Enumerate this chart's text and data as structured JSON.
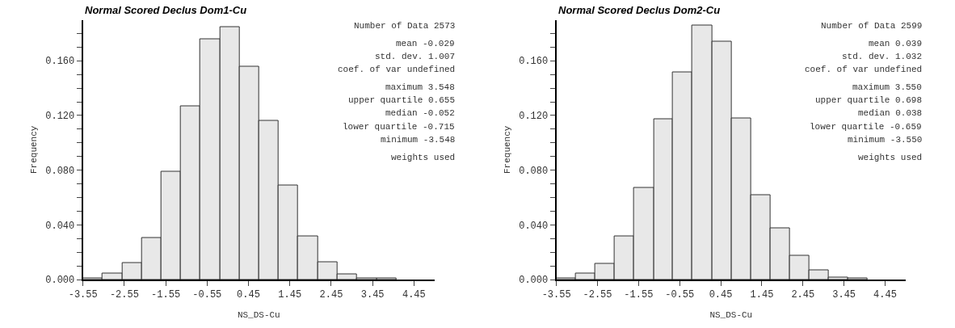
{
  "chart_data": [
    {
      "type": "histogram",
      "title": "Normal Scored Declus Dom1-Cu",
      "xlabel": "NS_DS-Cu",
      "ylabel": "Frequency",
      "color": "#e8e8e8",
      "bins": [
        -3.55,
        -3.08,
        -2.6,
        -2.13,
        -1.66,
        -1.18,
        -0.71,
        -0.24,
        0.23,
        0.71,
        1.18,
        1.65,
        2.13,
        2.6,
        3.07,
        3.55,
        4.02
      ],
      "values": [
        0.001,
        0.0045,
        0.012,
        0.0305,
        0.079,
        0.127,
        0.176,
        0.1845,
        0.1557,
        0.116,
        0.069,
        0.0315,
        0.013,
        0.004,
        0.001,
        0.001
      ],
      "xlim": [
        -3.55,
        4.95
      ],
      "ylim": [
        0,
        0.19
      ],
      "xticks": [
        -3.55,
        -2.55,
        -1.55,
        -0.55,
        0.45,
        1.45,
        2.45,
        3.45,
        4.45
      ],
      "yticks": [
        {
          "value": 0,
          "label": "0.000"
        },
        {
          "value": 0.01,
          "label": null
        },
        {
          "value": 0.02,
          "label": null
        },
        {
          "value": 0.03,
          "label": null
        },
        {
          "value": 0.04,
          "label": "0.040"
        },
        {
          "value": 0.05,
          "label": null
        },
        {
          "value": 0.06,
          "label": null
        },
        {
          "value": 0.07,
          "label": null
        },
        {
          "value": 0.08,
          "label": "0.080"
        },
        {
          "value": 0.09,
          "label": null
        },
        {
          "value": 0.1,
          "label": null
        },
        {
          "value": 0.11,
          "label": null
        },
        {
          "value": 0.12,
          "label": "0.120"
        },
        {
          "value": 0.13,
          "label": null
        },
        {
          "value": 0.14,
          "label": null
        },
        {
          "value": 0.15,
          "label": null
        },
        {
          "value": 0.16,
          "label": "0.160"
        },
        {
          "value": 0.17,
          "label": null
        },
        {
          "value": 0.18,
          "label": null
        }
      ],
      "annotations": [
        "Number of Data 2573",
        "mean -0.029",
        "std. dev. 1.007",
        "coef. of var undefined",
        "maximum 3.548",
        "upper quartile 0.655",
        "median -0.052",
        "lower quartile -0.715",
        "minimum -3.548",
        "weights used"
      ]
    },
    {
      "type": "histogram",
      "title": "Normal Scored Declus Dom2-Cu",
      "xlabel": "NS_DS-Cu",
      "ylabel": "Frequency",
      "color": "#e8e8e8",
      "bins": [
        -3.55,
        -3.08,
        -2.6,
        -2.13,
        -1.66,
        -1.18,
        -0.71,
        -0.24,
        0.24,
        0.71,
        1.18,
        1.66,
        2.13,
        2.6,
        3.08,
        3.55,
        4.02
      ],
      "values": [
        0.001,
        0.0046,
        0.0116,
        0.0317,
        0.0668,
        0.1174,
        0.1515,
        0.1859,
        0.1743,
        0.1181,
        0.062,
        0.0375,
        0.0172,
        0.0068,
        0.0015,
        0.0007
      ],
      "xlim": [
        -3.55,
        4.95
      ],
      "ylim": [
        0,
        0.19
      ],
      "xticks": [
        -3.55,
        -2.55,
        -1.55,
        -0.55,
        0.45,
        1.45,
        2.45,
        3.45,
        4.45
      ],
      "yticks": [
        {
          "value": 0,
          "label": "0.000"
        },
        {
          "value": 0.01,
          "label": null
        },
        {
          "value": 0.02,
          "label": null
        },
        {
          "value": 0.03,
          "label": null
        },
        {
          "value": 0.04,
          "label": "0.040"
        },
        {
          "value": 0.05,
          "label": null
        },
        {
          "value": 0.06,
          "label": null
        },
        {
          "value": 0.07,
          "label": null
        },
        {
          "value": 0.08,
          "label": "0.080"
        },
        {
          "value": 0.09,
          "label": null
        },
        {
          "value": 0.1,
          "label": null
        },
        {
          "value": 0.11,
          "label": null
        },
        {
          "value": 0.12,
          "label": "0.120"
        },
        {
          "value": 0.13,
          "label": null
        },
        {
          "value": 0.14,
          "label": null
        },
        {
          "value": 0.15,
          "label": null
        },
        {
          "value": 0.16,
          "label": "0.160"
        },
        {
          "value": 0.17,
          "label": null
        },
        {
          "value": 0.18,
          "label": null
        }
      ],
      "annotations": [
        "Number of Data 2599",
        "mean 0.039",
        "std. dev. 1.032",
        "coef. of var undefined",
        "maximum 3.550",
        "upper quartile 0.698",
        "median 0.038",
        "lower quartile -0.659",
        "minimum -3.550",
        "weights used"
      ]
    }
  ]
}
